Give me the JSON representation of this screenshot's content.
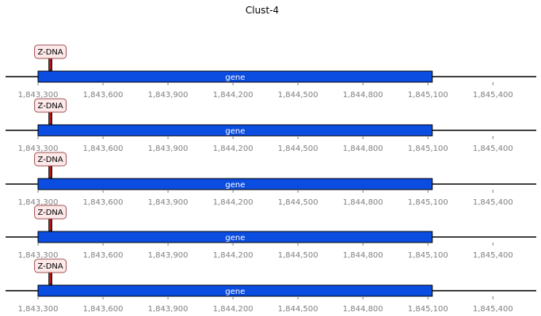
{
  "title": "Clust-4",
  "axis": {
    "min": 1843150,
    "max": 1845600,
    "ticks": [
      1843300,
      1843600,
      1843900,
      1844200,
      1844500,
      1844800,
      1845100,
      1845400
    ],
    "tick_labels": [
      "1,843,300",
      "1,843,600",
      "1,843,900",
      "1,844,200",
      "1,844,500",
      "1,844,800",
      "1,845,100",
      "1,845,400"
    ]
  },
  "colors": {
    "gene_fill": "#0b4de0",
    "gene_stroke": "#000000",
    "marker_fill": "#b01616",
    "marker_box_fill": "#fde9e9",
    "marker_box_stroke": "#a05050",
    "axis_line": "#000000",
    "tick_text": "#808080"
  },
  "tracks": [
    {
      "gene": {
        "label": "gene",
        "start": 1843300,
        "end": 1845120
      },
      "marker": {
        "label": "Z-DNA",
        "position": 1843357
      }
    },
    {
      "gene": {
        "label": "gene",
        "start": 1843300,
        "end": 1845120
      },
      "marker": {
        "label": "Z-DNA",
        "position": 1843357
      }
    },
    {
      "gene": {
        "label": "gene",
        "start": 1843300,
        "end": 1845120
      },
      "marker": {
        "label": "Z-DNA",
        "position": 1843357
      }
    },
    {
      "gene": {
        "label": "gene",
        "start": 1843300,
        "end": 1845120
      },
      "marker": {
        "label": "Z-DNA",
        "position": 1843357
      }
    },
    {
      "gene": {
        "label": "gene",
        "start": 1843300,
        "end": 1845120
      },
      "marker": {
        "label": "Z-DNA",
        "position": 1843357
      }
    }
  ]
}
